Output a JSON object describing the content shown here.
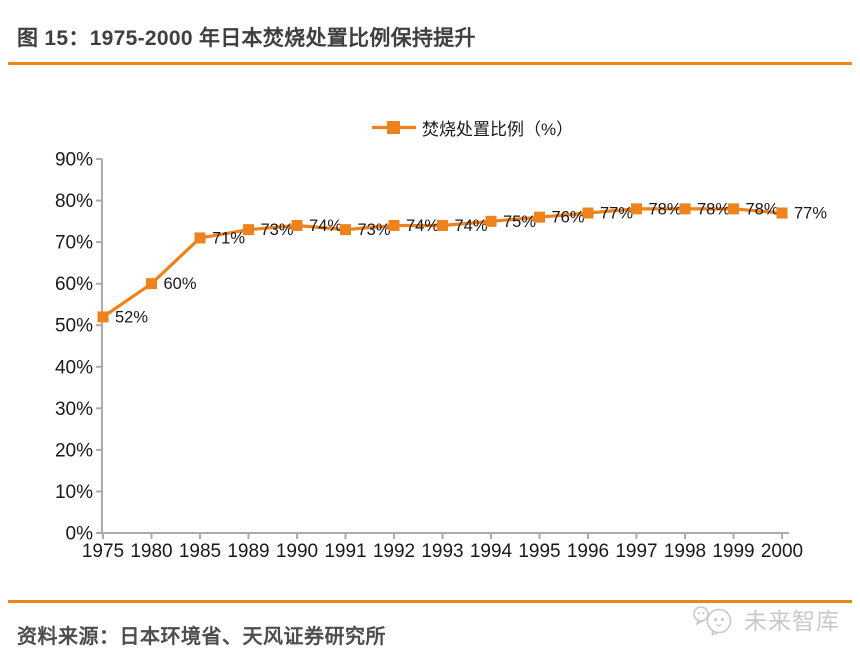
{
  "figure": {
    "title": "图 15：1975-2000 年日本焚烧处置比例保持提升",
    "source": "资料来源：日本环境省、天风证券研究所",
    "watermark": "未来智库"
  },
  "colors": {
    "accent_orange": "#EE821D",
    "axis_gray": "#ABABAB",
    "label_black": "#1A1A1A",
    "title_gray": "#3F3F3F",
    "source_gray": "#4D4D4D",
    "watermark_gray": "#C9C9C9"
  },
  "chart_data": {
    "type": "line",
    "title": "",
    "xlabel": "",
    "ylabel": "",
    "categories": [
      "1975",
      "1980",
      "1985",
      "1989",
      "1990",
      "1991",
      "1992",
      "1993",
      "1994",
      "1995",
      "1996",
      "1997",
      "1998",
      "1999",
      "2000"
    ],
    "series": [
      {
        "name": "焚烧处置比例（%）",
        "values": [
          52,
          60,
          71,
          73,
          74,
          73,
          74,
          74,
          75,
          76,
          77,
          78,
          78,
          78,
          77
        ],
        "color": "#EE821D",
        "marker": "square"
      }
    ],
    "data_labels": true,
    "data_label_suffix": "%",
    "ylim": [
      0,
      90
    ],
    "ytick_step": 10,
    "ytick_suffix": "%",
    "grid": false,
    "legend_position": "top-center"
  }
}
